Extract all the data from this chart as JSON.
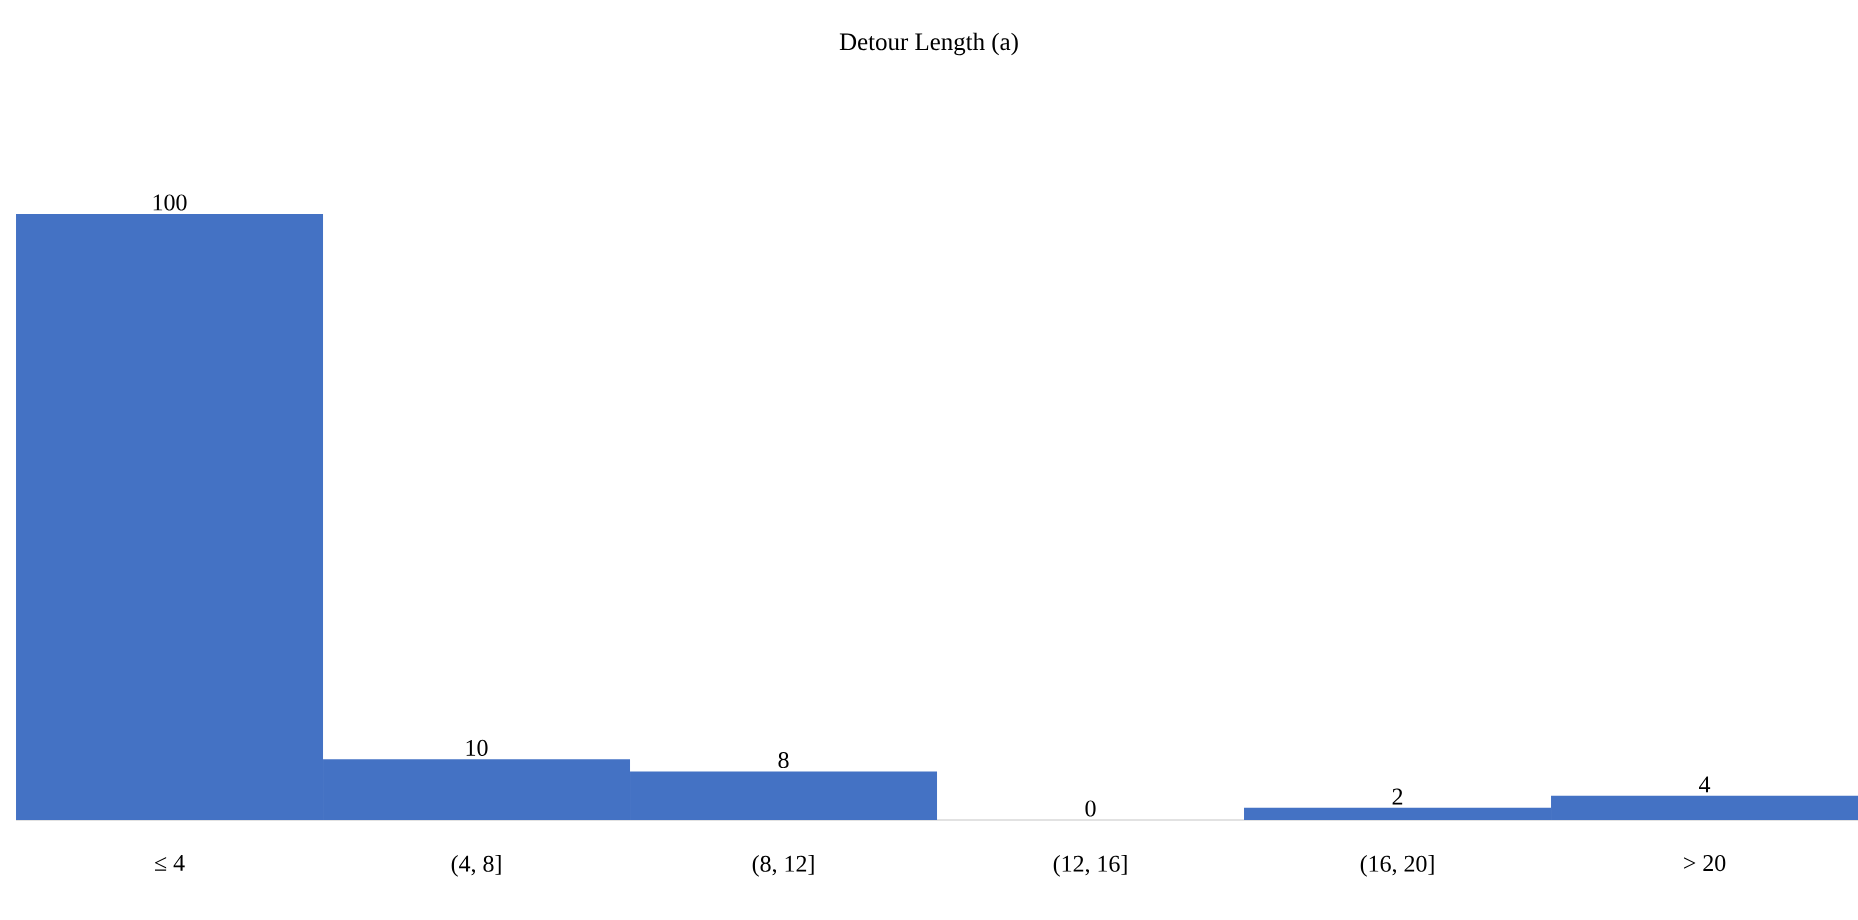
{
  "chart_data": {
    "type": "bar",
    "title": "Detour Length (a)",
    "categories": [
      "≤ 4",
      "(4, 8]",
      "(8, 12]",
      "(12, 16]",
      "(16, 20]",
      "> 20"
    ],
    "values": [
      100,
      10,
      8,
      0,
      2,
      4
    ],
    "color": "#4472c4",
    "data_labels": true
  }
}
